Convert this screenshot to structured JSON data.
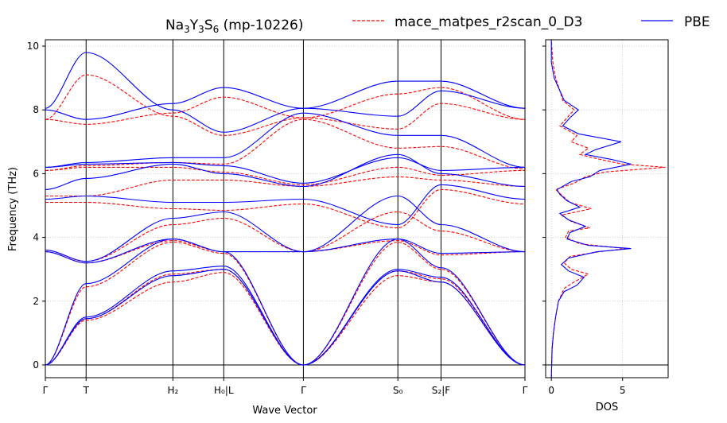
{
  "chart_data": [
    {
      "type": "line",
      "title": "Na3Y3S6 (mp-10226)",
      "title_parts": {
        "base1": "Na",
        "sub1": "3",
        "base2": "Y",
        "sub2": "3",
        "base3": "S",
        "sub3": "6",
        "rest": " (mp-10226)"
      },
      "xlabel": "Wave Vector",
      "ylabel": "Frequency (THz)",
      "ylim": [
        -0.4,
        10.2
      ],
      "yticks": [
        0,
        2,
        4,
        6,
        8,
        10
      ],
      "grid": true,
      "legend_placement": "top-right",
      "high_symmetry_points": [
        {
          "label": "Γ",
          "x": 0.0
        },
        {
          "label": "T",
          "x": 0.085
        },
        {
          "label": "H₂",
          "x": 0.266
        },
        {
          "label": "H₀|L",
          "x": 0.372
        },
        {
          "label": "Γ",
          "x": 0.538
        },
        {
          "label": "S₀",
          "x": 0.735
        },
        {
          "label": "S₂|F",
          "x": 0.825
        },
        {
          "label": "Γ",
          "x": 1.0
        }
      ],
      "series": [
        {
          "name": "mace_matpes_r2scan_0_D3",
          "color": "#ff0000",
          "style": "dashed",
          "bands": [
            [
              0,
              1.4,
              2.6,
              2.9,
              0,
              2.8,
              2.6,
              0
            ],
            [
              0,
              1.45,
              2.85,
              3.0,
              0,
              2.95,
              2.7,
              0
            ],
            [
              0,
              2.45,
              3.85,
              3.5,
              0,
              3.85,
              3.0,
              0
            ],
            [
              3.55,
              3.2,
              3.9,
              3.55,
              3.55,
              3.9,
              3.45,
              3.55
            ],
            [
              3.6,
              3.25,
              4.4,
              4.6,
              3.55,
              4.8,
              4.2,
              3.55
            ],
            [
              5.1,
              5.1,
              4.9,
              4.85,
              5.05,
              4.3,
              5.5,
              5.05
            ],
            [
              5.3,
              5.3,
              5.8,
              5.8,
              5.6,
              5.9,
              5.8,
              5.6
            ],
            [
              6.1,
              6.2,
              6.2,
              6.05,
              5.65,
              6.2,
              5.95,
              6.1
            ],
            [
              6.1,
              6.25,
              6.35,
              6.3,
              7.7,
              6.8,
              6.85,
              6.15
            ],
            [
              7.7,
              7.55,
              7.9,
              8.4,
              7.75,
              7.4,
              8.2,
              7.7
            ],
            [
              7.7,
              9.1,
              7.8,
              7.2,
              7.75,
              8.5,
              8.7,
              7.7
            ]
          ]
        },
        {
          "name": "PBE",
          "color": "#0000ff",
          "style": "solid",
          "bands": [
            [
              0,
              1.45,
              2.8,
              3.0,
              0,
              2.95,
              2.6,
              0
            ],
            [
              0,
              1.5,
              2.95,
              3.1,
              0,
              3.0,
              2.75,
              0
            ],
            [
              0,
              2.55,
              3.95,
              3.55,
              0,
              3.95,
              3.05,
              0
            ],
            [
              3.55,
              3.2,
              3.95,
              3.55,
              3.55,
              3.95,
              3.5,
              3.55
            ],
            [
              3.6,
              3.25,
              4.6,
              4.8,
              3.55,
              5.3,
              4.4,
              3.55
            ],
            [
              5.2,
              5.3,
              5.1,
              5.1,
              5.2,
              4.4,
              5.65,
              5.2
            ],
            [
              5.5,
              5.85,
              6.3,
              6.0,
              5.6,
              6.6,
              6.0,
              5.6
            ],
            [
              6.2,
              6.3,
              6.35,
              6.25,
              5.7,
              6.5,
              6.1,
              6.2
            ],
            [
              6.2,
              6.35,
              6.5,
              6.5,
              7.9,
              7.2,
              7.2,
              6.2
            ],
            [
              8.0,
              7.7,
              8.2,
              8.7,
              8.05,
              7.8,
              8.6,
              8.05
            ],
            [
              8.05,
              9.8,
              8.0,
              7.3,
              8.05,
              8.9,
              8.9,
              8.05
            ]
          ]
        }
      ]
    },
    {
      "type": "line",
      "xlabel": "DOS",
      "xlim": [
        -0.4,
        8.2
      ],
      "xticks": [
        0,
        5
      ],
      "ylim": [
        -0.4,
        10.2
      ],
      "grid": true,
      "series": [
        {
          "name": "mace_matpes_r2scan_0_D3",
          "color": "#ff0000",
          "style": "dashed",
          "points": [
            [
              0,
              -0.4
            ],
            [
              0.05,
              0.5
            ],
            [
              0.15,
              1.0
            ],
            [
              0.3,
              1.5
            ],
            [
              0.5,
              2.0
            ],
            [
              0.9,
              2.4
            ],
            [
              1.6,
              2.6
            ],
            [
              2.6,
              2.85
            ],
            [
              1.4,
              3.0
            ],
            [
              0.9,
              3.2
            ],
            [
              1.3,
              3.4
            ],
            [
              3.4,
              3.55
            ],
            [
              5.2,
              3.65
            ],
            [
              2.0,
              3.8
            ],
            [
              1.0,
              4.0
            ],
            [
              1.2,
              4.2
            ],
            [
              2.7,
              4.3
            ],
            [
              1.4,
              4.5
            ],
            [
              0.7,
              4.7
            ],
            [
              2.8,
              4.9
            ],
            [
              1.3,
              5.1
            ],
            [
              0.8,
              5.3
            ],
            [
              0.3,
              5.5
            ],
            [
              1.6,
              5.7
            ],
            [
              2.4,
              5.9
            ],
            [
              3.7,
              6.05
            ],
            [
              8.0,
              6.2
            ],
            [
              5.0,
              6.3
            ],
            [
              3.4,
              6.45
            ],
            [
              2.0,
              6.6
            ],
            [
              2.6,
              6.8
            ],
            [
              1.4,
              7.0
            ],
            [
              1.8,
              7.2
            ],
            [
              0.6,
              7.5
            ],
            [
              1.1,
              7.75
            ],
            [
              1.6,
              8.0
            ],
            [
              0.8,
              8.3
            ],
            [
              0.6,
              8.6
            ],
            [
              0.3,
              9.0
            ],
            [
              0.1,
              9.5
            ],
            [
              0,
              10.2
            ]
          ]
        },
        {
          "name": "PBE",
          "color": "#0000ff",
          "style": "solid",
          "points": [
            [
              0,
              -0.4
            ],
            [
              0.05,
              0.5
            ],
            [
              0.15,
              1.0
            ],
            [
              0.3,
              1.5
            ],
            [
              0.5,
              2.0
            ],
            [
              0.9,
              2.3
            ],
            [
              1.8,
              2.5
            ],
            [
              2.3,
              2.75
            ],
            [
              1.2,
              2.95
            ],
            [
              0.7,
              3.15
            ],
            [
              1.2,
              3.35
            ],
            [
              3.2,
              3.55
            ],
            [
              5.6,
              3.65
            ],
            [
              2.6,
              3.75
            ],
            [
              1.1,
              3.95
            ],
            [
              1.3,
              4.15
            ],
            [
              2.4,
              4.35
            ],
            [
              1.2,
              4.55
            ],
            [
              0.6,
              4.75
            ],
            [
              2.0,
              4.95
            ],
            [
              1.1,
              5.15
            ],
            [
              0.6,
              5.35
            ],
            [
              0.4,
              5.5
            ],
            [
              1.4,
              5.75
            ],
            [
              2.7,
              5.9
            ],
            [
              3.4,
              6.1
            ],
            [
              5.6,
              6.3
            ],
            [
              4.2,
              6.45
            ],
            [
              2.4,
              6.6
            ],
            [
              3.1,
              6.75
            ],
            [
              4.9,
              7.0
            ],
            [
              1.9,
              7.25
            ],
            [
              0.8,
              7.5
            ],
            [
              1.3,
              7.75
            ],
            [
              1.9,
              8.0
            ],
            [
              0.9,
              8.3
            ],
            [
              0.5,
              8.7
            ],
            [
              0.2,
              9.0
            ],
            [
              0,
              9.5
            ],
            [
              0,
              10.2
            ]
          ]
        }
      ]
    }
  ]
}
